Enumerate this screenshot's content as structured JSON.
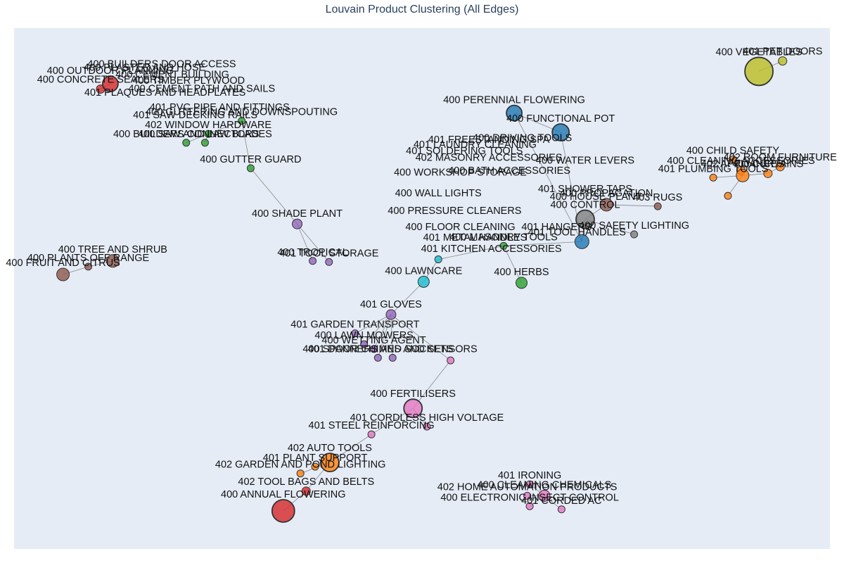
{
  "chart_data": {
    "type": "scatter",
    "title": "Louvain Product Clustering (All Edges)",
    "grid": false,
    "legend": "none",
    "plot_bg": "#e5ecf6",
    "edge_color": "#888888",
    "cluster_colors": {
      "blue": "#1f77b4",
      "orange": "#ff7f0e",
      "green": "#2ca02c",
      "red": "#d62728",
      "purple": "#9467bd",
      "brown": "#8c564b",
      "pink": "#e377c2",
      "gray": "#7f7f7f",
      "olive": "#bcbd22",
      "cyan": "#17becf"
    },
    "nodes": [
      {
        "id": "veg",
        "label": "400 VEGETABLES",
        "x": 0.913,
        "y": 0.917,
        "r": 20,
        "c": "olive"
      },
      {
        "id": "petdoors",
        "label": "401 PET DOORS",
        "x": 0.942,
        "y": 0.937,
        "r": 6,
        "c": "olive"
      },
      {
        "id": "perennial",
        "label": "400 PERENNIAL FLOWERING",
        "x": 0.613,
        "y": 0.837,
        "r": 11,
        "c": "blue"
      },
      {
        "id": "functional",
        "label": "400 FUNCTIONAL POT",
        "x": 0.67,
        "y": 0.8,
        "r": 12,
        "c": "blue"
      },
      {
        "id": "childsafety",
        "label": "400 CHILD SAFETY",
        "x": 0.881,
        "y": 0.748,
        "r": 5,
        "c": "orange"
      },
      {
        "id": "cleaningacc",
        "label": "400 CLEANING ACCESSORIES",
        "x": 0.891,
        "y": 0.727,
        "r": 6,
        "c": "orange"
      },
      {
        "id": "roomfurn",
        "label": "402 ROOM FURNITURE",
        "x": 0.939,
        "y": 0.734,
        "r": 6,
        "c": "orange"
      },
      {
        "id": "appliances",
        "label": "402 APPLIANCES",
        "x": 0.893,
        "y": 0.717,
        "r": 9,
        "c": "orange"
      },
      {
        "id": "curtains",
        "label": "400 CURTAINS",
        "x": 0.924,
        "y": 0.721,
        "r": 6,
        "c": "orange"
      },
      {
        "id": "plumbtools",
        "label": "401 PLUMBING TOOLS",
        "x": 0.857,
        "y": 0.713,
        "r": 5,
        "c": "orange"
      },
      {
        "id": "plumbtools2",
        "label": "",
        "x": 0.875,
        "y": 0.678,
        "r": 5,
        "c": "orange"
      },
      {
        "id": "rugs",
        "label": "403 RUGS",
        "x": 0.789,
        "y": 0.658,
        "r": 5,
        "c": "brown"
      },
      {
        "id": "propagation",
        "label": "400 PROPAGATION",
        "x": 0.726,
        "y": 0.661,
        "r": 9,
        "c": "brown"
      },
      {
        "id": "safetylight",
        "label": "400 SAFETY LIGHTING",
        "x": 0.76,
        "y": 0.604,
        "r": 5,
        "c": "gray"
      },
      {
        "id": "control",
        "label": "400 CONTROL",
        "x": 0.7,
        "y": 0.633,
        "r": 13,
        "c": "gray"
      },
      {
        "id": "bigblue",
        "label": "",
        "x": 0.696,
        "y": 0.59,
        "r": 10,
        "c": "blue"
      },
      {
        "id": "masonry",
        "label": "400 MASONRY TOOLS",
        "x": 0.6,
        "y": 0.582,
        "r": 5,
        "c": "green"
      },
      {
        "id": "herbs",
        "label": "400 HERBS",
        "x": 0.622,
        "y": 0.511,
        "r": 8,
        "c": "green"
      },
      {
        "id": "lawncare",
        "label": "400 LAWNCARE",
        "x": 0.502,
        "y": 0.513,
        "r": 8,
        "c": "cyan"
      },
      {
        "id": "lawncare2",
        "label": "",
        "x": 0.52,
        "y": 0.556,
        "r": 5,
        "c": "cyan"
      },
      {
        "id": "gloves",
        "label": "401 GLOVES",
        "x": 0.462,
        "y": 0.45,
        "r": 7,
        "c": "purple"
      },
      {
        "id": "shadeplant",
        "label": "400 SHADE PLANT",
        "x": 0.347,
        "y": 0.624,
        "r": 7,
        "c": "purple"
      },
      {
        "id": "tropical",
        "label": "400 TROPICAL",
        "x": 0.366,
        "y": 0.553,
        "r": 5,
        "c": "purple"
      },
      {
        "id": "toolstorage",
        "label": "401 TOOL STORAGE",
        "x": 0.386,
        "y": 0.551,
        "r": 5,
        "c": "purple"
      },
      {
        "id": "gardentrans",
        "label": "401 GARDEN TRANSPORT",
        "x": 0.418,
        "y": 0.414,
        "r": 5,
        "c": "purple"
      },
      {
        "id": "lawnmowers",
        "label": "400 LAWN MOWERS",
        "x": 0.429,
        "y": 0.393,
        "r": 5,
        "c": "purple"
      },
      {
        "id": "wetting",
        "label": "400 WETTING AGENT",
        "x": 0.441,
        "y": 0.384,
        "r": 5,
        "c": "purple"
      },
      {
        "id": "spanners",
        "label": "400 SPANNERS AND SOCKETS",
        "x": 0.446,
        "y": 0.367,
        "r": 5,
        "c": "purple"
      },
      {
        "id": "doorchimes",
        "label": "401 DOOR CHIMES AND SENSORS",
        "x": 0.464,
        "y": 0.367,
        "r": 5,
        "c": "purple"
      },
      {
        "id": "fertilisers",
        "label": "400 FERTILISERS",
        "x": 0.489,
        "y": 0.27,
        "r": 13,
        "c": "pink"
      },
      {
        "id": "doorchimes2",
        "label": "",
        "x": 0.535,
        "y": 0.362,
        "r": 5,
        "c": "pink"
      },
      {
        "id": "cordless",
        "label": "401 CORDLESS HIGH VOLTAGE",
        "x": 0.506,
        "y": 0.235,
        "r": 5,
        "c": "pink"
      },
      {
        "id": "steelreinf",
        "label": "401 STEEL REINFORCING",
        "x": 0.438,
        "y": 0.22,
        "r": 5,
        "c": "pink"
      },
      {
        "id": "autotools",
        "label": "402 AUTO TOOLS",
        "x": 0.387,
        "y": 0.166,
        "r": 13,
        "c": "orange"
      },
      {
        "id": "plantsupport",
        "label": "401 PLANT SUPPORT",
        "x": 0.369,
        "y": 0.158,
        "r": 5,
        "c": "orange"
      },
      {
        "id": "gardenpond",
        "label": "402 GARDEN AND POND LIGHTING",
        "x": 0.351,
        "y": 0.145,
        "r": 5,
        "c": "orange"
      },
      {
        "id": "toolbags",
        "label": "402 TOOL BAGS AND BELTS",
        "x": 0.358,
        "y": 0.111,
        "r": 6,
        "c": "red"
      },
      {
        "id": "annualflow",
        "label": "400 ANNUAL FLOWERING",
        "x": 0.33,
        "y": 0.073,
        "r": 16,
        "c": "red"
      },
      {
        "id": "ironing",
        "label": "401 IRONING",
        "x": 0.632,
        "y": 0.124,
        "r": 5,
        "c": "pink"
      },
      {
        "id": "homeauto",
        "label": "402 HOME AUTOMATION PRODUCTS",
        "x": 0.629,
        "y": 0.102,
        "r": 5,
        "c": "pink"
      },
      {
        "id": "cleaningchem",
        "label": "400 CLEANING CHEMICALS",
        "x": 0.65,
        "y": 0.102,
        "r": 8,
        "c": "pink"
      },
      {
        "id": "insect",
        "label": "400 ELECTRONIC INSECT CONTROL",
        "x": 0.632,
        "y": 0.082,
        "r": 5,
        "c": "pink"
      },
      {
        "id": "cordedac",
        "label": "401 CORDED AC",
        "x": 0.671,
        "y": 0.076,
        "r": 5,
        "c": "pink"
      },
      {
        "id": "treeshrub",
        "label": "400 TREE AND SHRUB",
        "x": 0.121,
        "y": 0.553,
        "r": 9,
        "c": "brown"
      },
      {
        "id": "plantsoff",
        "label": "400 PLANTS OFF RANGE",
        "x": 0.091,
        "y": 0.542,
        "r": 5,
        "c": "brown"
      },
      {
        "id": "fruitcitrus",
        "label": "400 FRUIT AND CITRUS",
        "x": 0.06,
        "y": 0.527,
        "r": 9,
        "c": "brown"
      },
      {
        "id": "gutterguard",
        "label": "400 GUTTER GUARD",
        "x": 0.29,
        "y": 0.731,
        "r": 5,
        "c": "green"
      },
      {
        "id": "buildersconn",
        "label": "400 BUILDERS CONNECTORS",
        "x": 0.211,
        "y": 0.78,
        "r": 5,
        "c": "green"
      },
      {
        "id": "sawblades",
        "label": "400 SAW AND LAW BLADES",
        "x": 0.234,
        "y": 0.78,
        "r": 5,
        "c": "green"
      },
      {
        "id": "window",
        "label": "402 WINDOW HARDWARE",
        "x": 0.238,
        "y": 0.797,
        "r": 5,
        "c": "green"
      },
      {
        "id": "guttering",
        "label": "400 GUTTERING AND DOWNSPOUTING",
        "x": 0.279,
        "y": 0.822,
        "r": 5,
        "c": "green"
      },
      {
        "id": "concrete",
        "label": "400 CONCRETE SEALERS",
        "x": 0.106,
        "y": 0.883,
        "r": 6,
        "c": "red"
      },
      {
        "id": "outdoorplan",
        "label": "400 OUTDOOR PLANNING",
        "x": 0.118,
        "y": 0.893,
        "r": 11,
        "c": "red"
      }
    ],
    "cluster_labels": [
      {
        "label": "400 BUILDERS DOOR ACCESS",
        "x": 0.181,
        "y": 0.925
      },
      {
        "label": "400 PLASTER AND HOSE",
        "x": 0.16,
        "y": 0.918
      },
      {
        "label": "400 CEMENT BUILDING",
        "x": 0.194,
        "y": 0.905
      },
      {
        "label": "400 TIMBER PLYWOOD",
        "x": 0.214,
        "y": 0.893
      },
      {
        "label": "400 CEMENT PATH AND SAILS",
        "x": 0.23,
        "y": 0.878
      },
      {
        "label": "401 PLAQUES AND HEADPLATES",
        "x": 0.185,
        "y": 0.87
      },
      {
        "label": "401 PVC PIPE AND FITTINGS",
        "x": 0.252,
        "y": 0.842
      },
      {
        "label": "401 SAW DECKING RAILS",
        "x": 0.222,
        "y": 0.827
      },
      {
        "label": "401 FREESTANDING SPA",
        "x": 0.582,
        "y": 0.78
      },
      {
        "label": "400 DRIVING TOOLS",
        "x": 0.623,
        "y": 0.783
      },
      {
        "label": "401 LAUNDRY CLEANING",
        "x": 0.565,
        "y": 0.77
      },
      {
        "label": "401 SOLDERING TOOLS",
        "x": 0.552,
        "y": 0.758
      },
      {
        "label": "402 MASONRY ACCESSORIES",
        "x": 0.582,
        "y": 0.745
      },
      {
        "label": "400 WATER LEVERS",
        "x": 0.7,
        "y": 0.74
      },
      {
        "label": "400 WORKSHOP STORAGE",
        "x": 0.547,
        "y": 0.717
      },
      {
        "label": "400 BATH ACCESSORIES",
        "x": 0.607,
        "y": 0.72
      },
      {
        "label": "401 SHOWER TAPS",
        "x": 0.7,
        "y": 0.685
      },
      {
        "label": "400 WALL LIGHTS",
        "x": 0.52,
        "y": 0.677
      },
      {
        "label": "400 HOUSE PLANT",
        "x": 0.713,
        "y": 0.67
      },
      {
        "label": "400 PRESSURE CLEANERS",
        "x": 0.54,
        "y": 0.643
      },
      {
        "label": "400 FLOOR CLEANING",
        "x": 0.547,
        "y": 0.612
      },
      {
        "label": "401 HANGERS",
        "x": 0.665,
        "y": 0.612
      },
      {
        "label": "401 METAL HANDLES",
        "x": 0.565,
        "y": 0.592
      },
      {
        "label": "401 TOOL HANDLES",
        "x": 0.69,
        "y": 0.602
      },
      {
        "label": "401 KITCHEN ACCESSORIES",
        "x": 0.585,
        "y": 0.57
      }
    ],
    "edges": [
      [
        "veg",
        "petdoors"
      ],
      [
        "perennial",
        "functional"
      ],
      [
        "functional",
        "bigblue"
      ],
      [
        "perennial",
        "bigblue"
      ],
      [
        "childsafety",
        "appliances"
      ],
      [
        "appliances",
        "curtains"
      ],
      [
        "curtains",
        "roomfurn"
      ],
      [
        "appliances",
        "cleaningacc"
      ],
      [
        "appliances",
        "plumbtools"
      ],
      [
        "appliances",
        "plumbtools2"
      ],
      [
        "propagation",
        "rugs"
      ],
      [
        "control",
        "propagation"
      ],
      [
        "control",
        "safetylight"
      ],
      [
        "control",
        "bigblue"
      ],
      [
        "bigblue",
        "masonry"
      ],
      [
        "masonry",
        "herbs"
      ],
      [
        "masonry",
        "lawncare2"
      ],
      [
        "lawncare2",
        "lawncare"
      ],
      [
        "lawncare",
        "gloves"
      ],
      [
        "gloves",
        "gardentrans"
      ],
      [
        "gloves",
        "lawnmowers"
      ],
      [
        "gloves",
        "wetting"
      ],
      [
        "gloves",
        "spanners"
      ],
      [
        "gloves",
        "doorchimes"
      ],
      [
        "gutterguard",
        "shadeplant"
      ],
      [
        "shadeplant",
        "tropical"
      ],
      [
        "shadeplant",
        "toolstorage"
      ],
      [
        "gloves",
        "doorchimes2"
      ],
      [
        "doorchimes2",
        "fertilisers"
      ],
      [
        "fertilisers",
        "cordless"
      ],
      [
        "fertilisers",
        "steelreinf"
      ],
      [
        "steelreinf",
        "autotools"
      ],
      [
        "autotools",
        "plantsupport"
      ],
      [
        "autotools",
        "gardenpond"
      ],
      [
        "autotools",
        "toolbags"
      ],
      [
        "toolbags",
        "annualflow"
      ],
      [
        "ironing",
        "cleaningchem"
      ],
      [
        "homeauto",
        "cleaningchem"
      ],
      [
        "cleaningchem",
        "insect"
      ],
      [
        "cleaningchem",
        "cordedac"
      ],
      [
        "treeshrub",
        "plantsoff"
      ],
      [
        "plantsoff",
        "fruitcitrus"
      ],
      [
        "gutterguard",
        "guttering"
      ],
      [
        "guttering",
        "window"
      ],
      [
        "window",
        "buildersconn"
      ],
      [
        "window",
        "sawblades"
      ],
      [
        "concrete",
        "outdoorplan"
      ]
    ]
  }
}
